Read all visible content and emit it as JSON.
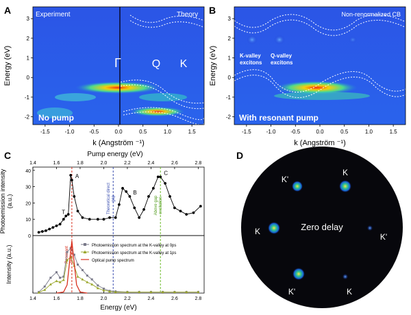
{
  "panels": {
    "A": {
      "letter": "A",
      "left_label": "Experiment",
      "right_label": "Theory",
      "ylabel": "Energy (eV)",
      "xlabel": "k (Angström ⁻¹)",
      "xticks": [
        "-1.5",
        "-1.0",
        "-0.5",
        "0.0",
        "0.5",
        "1.0",
        "1.5"
      ],
      "yticks": [
        "3",
        "2",
        "1",
        "0",
        "-1",
        "-2"
      ],
      "points": [
        "Γ",
        "Q",
        "K"
      ],
      "caption": "No pump"
    },
    "B": {
      "letter": "B",
      "right_label": "Non-renormalized CB",
      "ylabel": "Energy (eV)",
      "xlabel": "k (Angström ⁻¹)",
      "xticks": [
        "-1.5",
        "-1.0",
        "-0.5",
        "0.0",
        "0.5",
        "1.0",
        "1.5"
      ],
      "yticks": [
        "3",
        "2",
        "1",
        "0",
        "-1",
        "-2"
      ],
      "k_exciton": "K-valley excitons",
      "q_exciton": "Q-valley excitons",
      "caption": "With resonant pump"
    },
    "C": {
      "letter": "C",
      "top_xlabel": "Pump energy (eV)",
      "ylabel_top": "Photoemission intensity (a.u.)",
      "ylabel_bottom": "Intensity (a.u.)",
      "xlabel": "Energy (eV)",
      "xticks": [
        "1.4",
        "1.6",
        "1.8",
        "2.0",
        "2.2",
        "2.4",
        "2.6",
        "2.8"
      ],
      "yticks_top": [
        "40",
        "30",
        "20",
        "10",
        "0"
      ],
      "peak_labels": [
        "T",
        "A",
        "B",
        "C"
      ],
      "ann_theoretical": "Theoretical direct gap",
      "ann_above": "Above gap excitation",
      "ann_resonant": "Resonant excitation",
      "legend": [
        "Photoemission spectrum at the K-valley at 0ps",
        "Photoemission spectrum at the K-valley at 1ps",
        "Optical pump spectrum"
      ]
    },
    "D": {
      "letter": "D",
      "center_label": "Zero delay",
      "valley_labels": [
        "K'",
        "K",
        "K",
        "K'",
        "K'",
        "K"
      ]
    }
  },
  "chart_data": [
    {
      "type": "scatter",
      "title": "",
      "xlabel": "Pump energy (eV)",
      "ylabel": "Photoemission intensity (a.u.)",
      "xlim": [
        1.4,
        2.85
      ],
      "ylim": [
        0,
        42
      ],
      "x": [
        1.45,
        1.48,
        1.51,
        1.54,
        1.57,
        1.6,
        1.63,
        1.66,
        1.68,
        1.7,
        1.72,
        1.73,
        1.75,
        1.78,
        1.82,
        1.88,
        1.95,
        2.0,
        2.05,
        2.1,
        2.13,
        2.16,
        2.19,
        2.22,
        2.26,
        2.3,
        2.34,
        2.38,
        2.42,
        2.46,
        2.48,
        2.52,
        2.56,
        2.6,
        2.65,
        2.7,
        2.76,
        2.82
      ],
      "y": [
        2,
        2.5,
        3,
        4,
        5,
        6,
        7,
        10,
        12,
        13,
        37,
        34,
        24,
        15,
        11,
        10,
        10,
        10,
        11,
        11,
        19,
        29,
        27,
        24,
        17,
        11,
        16,
        24,
        29,
        36,
        36,
        32,
        24,
        17,
        15,
        13,
        14,
        18
      ],
      "annotations": [
        {
          "label": "T",
          "x": 1.68
        },
        {
          "label": "A",
          "x": 1.73
        },
        {
          "label": "B",
          "x": 2.22
        },
        {
          "label": "C",
          "x": 2.48
        }
      ],
      "vlines": [
        {
          "label": "Resonant excitation",
          "x": 1.73,
          "color": "#d9301e"
        },
        {
          "label": "Theoretical direct gap",
          "x": 2.08,
          "color": "#3b4fb0"
        },
        {
          "label": "Above gap excitation",
          "x": 2.48,
          "color": "#6cbb2a"
        }
      ]
    },
    {
      "type": "line",
      "xlabel": "Energy (eV)",
      "ylabel": "Intensity (a.u.)",
      "xlim": [
        1.4,
        2.85
      ],
      "ylim": [
        0,
        1.05
      ],
      "series": [
        {
          "name": "Photoemission spectrum at the K-valley at 0ps",
          "color": "#7a7a8a",
          "x": [
            1.45,
            1.5,
            1.55,
            1.6,
            1.63,
            1.66,
            1.69,
            1.72,
            1.75,
            1.78,
            1.82,
            1.86,
            1.9,
            1.95,
            2.0,
            2.05,
            2.1,
            2.2,
            2.3,
            2.4,
            2.5,
            2.6,
            2.7,
            2.8
          ],
          "y": [
            0.02,
            0.12,
            0.28,
            0.38,
            0.28,
            0.3,
            0.75,
            0.82,
            0.7,
            0.52,
            0.42,
            0.32,
            0.25,
            0.14,
            0.08,
            0.04,
            0.03,
            0.02,
            0.02,
            0.02,
            0.02,
            0.02,
            0.02,
            0.02
          ]
        },
        {
          "name": "Photoemission spectrum at the K-valley at 1ps",
          "color": "#9aa62a",
          "x": [
            1.45,
            1.5,
            1.55,
            1.6,
            1.63,
            1.66,
            1.69,
            1.72,
            1.75,
            1.78,
            1.82,
            1.86,
            1.9,
            1.95,
            2.0,
            2.05,
            2.1,
            2.2,
            2.3,
            2.4,
            2.5,
            2.6,
            2.7,
            2.8
          ],
          "y": [
            0.01,
            0.06,
            0.16,
            0.22,
            0.2,
            0.24,
            0.6,
            0.66,
            0.5,
            0.3,
            0.25,
            0.2,
            0.16,
            0.09,
            0.05,
            0.03,
            0.02,
            0.02,
            0.02,
            0.02,
            0.02,
            0.02,
            0.02,
            0.02
          ]
        },
        {
          "name": "Optical pump spectrum",
          "color": "#d9301e",
          "x": [
            1.6,
            1.66,
            1.69,
            1.71,
            1.73,
            1.75,
            1.77,
            1.8,
            1.86
          ],
          "y": [
            0.0,
            0.02,
            0.15,
            0.55,
            0.95,
            0.55,
            0.15,
            0.02,
            0.0
          ]
        }
      ]
    }
  ]
}
